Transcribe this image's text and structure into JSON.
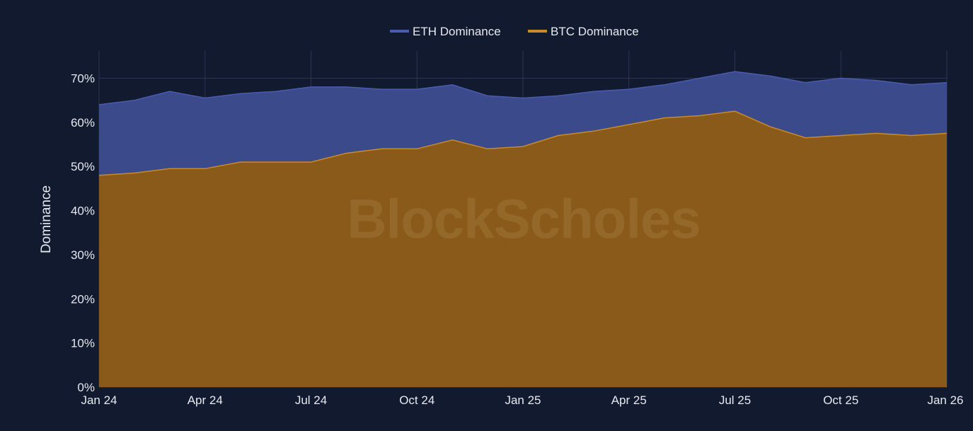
{
  "colors": {
    "background": "#111a2e",
    "eth": "#3b4a8a",
    "eth_line": "#4a5bb0",
    "btc": "#8a5a1a",
    "btc_line": "#c98a2a",
    "grid": "#2a3550"
  },
  "watermark": "BlockScholes",
  "chart_data": {
    "type": "area",
    "stacked": false,
    "ylabel": "Dominance",
    "xlabel": "",
    "ylim": [
      0,
      72
    ],
    "y_ticks": [
      "0%",
      "10%",
      "20%",
      "30%",
      "40%",
      "50%",
      "60%",
      "70%"
    ],
    "y_tick_values": [
      0,
      10,
      20,
      30,
      40,
      50,
      60,
      70
    ],
    "x_ticks": [
      "Jan 24",
      "Apr 24",
      "Jul 24",
      "Oct 24",
      "Jan 25",
      "Apr 25",
      "Jul 25",
      "Oct 25",
      "Jan 26"
    ],
    "legend_position": "top-center",
    "grid": true,
    "x": [
      "Jan 24",
      "Feb 24",
      "Mar 24",
      "Apr 24",
      "May 24",
      "Jun 24",
      "Jul 24",
      "Aug 24",
      "Sep 24",
      "Oct 24",
      "Nov 24",
      "Dec 24",
      "Jan 25",
      "Feb 25",
      "Mar 25",
      "Apr 25",
      "May 25",
      "Jun 25",
      "Jul 25",
      "Aug 25",
      "Sep 25",
      "Oct 25",
      "Nov 25",
      "Dec 25",
      "Jan 26"
    ],
    "series": [
      {
        "name": "ETH Dominance",
        "values": [
          64,
          65,
          67,
          65.5,
          66.5,
          67,
          68,
          68,
          67.5,
          67.5,
          68.5,
          66,
          65.5,
          66,
          67,
          67.5,
          68.5,
          70,
          71.5,
          70.5,
          69,
          70,
          69.5,
          68.5,
          69
        ]
      },
      {
        "name": "BTC Dominance",
        "values": [
          48,
          48.5,
          49.5,
          49.5,
          51,
          51,
          51,
          53,
          54,
          54,
          56,
          54,
          54.5,
          57,
          58,
          59.5,
          61,
          61.5,
          62.5,
          59,
          56.5,
          57,
          57.5,
          57,
          57.5
        ]
      }
    ]
  }
}
